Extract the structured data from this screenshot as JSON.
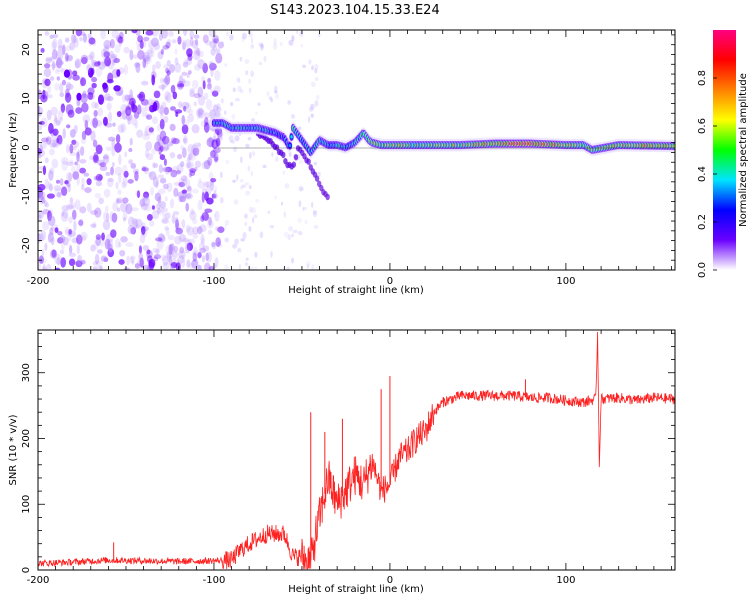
{
  "title": "S143.2023.104.15.33.E24",
  "chart_data": [
    {
      "type": "heatmap",
      "xlabel": "Height of straight line (km)",
      "ylabel": "Frequency (Hz)",
      "xlim": [
        -200,
        162
      ],
      "ylim": [
        -25,
        24
      ],
      "x_ticks": [
        -200,
        -100,
        0,
        100
      ],
      "y_ticks": [
        -20,
        -10,
        0,
        10,
        20
      ],
      "colorbar": {
        "label": "Normalized spectral amplitude",
        "range": [
          0,
          1
        ],
        "ticks": [
          0.0,
          0.2,
          0.4,
          0.6,
          0.8
        ],
        "tick_labels": [
          "0.0",
          "0.2",
          "0.4",
          "0.6",
          "0.8"
        ],
        "colors": [
          "#ffffff",
          "#6a00ff",
          "#0000ff",
          "#00e5ff",
          "#00ff00",
          "#ffff00",
          "#ff8000",
          "#ff0000",
          "#ff0080"
        ]
      },
      "noise_region": {
        "x_range": [
          -200,
          -100
        ],
        "f_range": [
          -25,
          24
        ],
        "typical_amplitude": 0.1
      },
      "signal_track": {
        "x": [
          -100,
          -95,
          -90,
          -85,
          -80,
          -75,
          -70,
          -65,
          -60,
          -57,
          -55,
          -50,
          -45,
          -40,
          -35,
          -30,
          -25,
          -20,
          -15,
          -12,
          -10,
          -5,
          0,
          10,
          20,
          40,
          60,
          80,
          100,
          110,
          115,
          130,
          162
        ],
        "frequency": [
          5,
          5,
          4,
          4,
          4,
          4,
          3.5,
          3,
          2,
          0,
          4,
          1.5,
          -1,
          1.5,
          0.5,
          0.5,
          0,
          1,
          3,
          1.5,
          1,
          0.5,
          0.5,
          0.5,
          0.5,
          0.5,
          0.8,
          0.8,
          0.5,
          0.5,
          -0.5,
          0.5,
          0.3
        ],
        "amplitude": [
          0.35,
          0.4,
          0.4,
          0.45,
          0.4,
          0.4,
          0.4,
          0.35,
          0.3,
          0.3,
          0.45,
          0.35,
          0.4,
          0.45,
          0.35,
          0.45,
          0.4,
          0.4,
          0.5,
          0.55,
          0.6,
          0.55,
          0.6,
          0.6,
          0.55,
          0.6,
          0.75,
          0.85,
          0.7,
          0.6,
          0.6,
          0.65,
          0.7
        ]
      },
      "branch_track": {
        "x": [
          -75,
          -70,
          -65,
          -60,
          -58,
          -55,
          -52,
          -48,
          -45,
          -42,
          -40,
          -38,
          -35
        ],
        "frequency": [
          3,
          2,
          0,
          -2,
          -3.5,
          -4,
          0,
          -2,
          -4,
          -6,
          -8,
          -9,
          -10
        ],
        "amplitude": [
          0.2,
          0.15,
          0.15,
          0.12,
          0.12,
          0.1,
          0.12,
          0.1,
          0.08,
          0.08,
          0.06,
          0.05,
          0.05
        ]
      }
    },
    {
      "type": "line",
      "xlabel": "Height of straight line (km)",
      "ylabel": "SNR (10 * v/v)",
      "xlim": [
        -200,
        162
      ],
      "ylim": [
        0,
        365
      ],
      "x_ticks": [
        -200,
        -100,
        0,
        100
      ],
      "y_ticks": [
        0,
        100,
        200,
        300
      ],
      "color": "#ff2020",
      "x": [
        -200,
        -180,
        -160,
        -140,
        -120,
        -100,
        -90,
        -85,
        -80,
        -70,
        -60,
        -55,
        -50,
        -45,
        -40,
        -35,
        -30,
        -25,
        -20,
        -15,
        -10,
        -5,
        0,
        5,
        10,
        15,
        20,
        25,
        30,
        40,
        50,
        60,
        70,
        80,
        90,
        100,
        110,
        117,
        118,
        119,
        120,
        130,
        140,
        150,
        162
      ],
      "values": [
        10,
        12,
        15,
        14,
        13,
        14,
        15,
        30,
        40,
        55,
        55,
        20,
        20,
        15,
        80,
        140,
        100,
        120,
        145,
        130,
        165,
        120,
        130,
        170,
        180,
        200,
        210,
        240,
        255,
        265,
        265,
        265,
        265,
        262,
        262,
        258,
        255,
        260,
        360,
        162,
        260,
        262,
        258,
        262,
        260
      ],
      "spikes": [
        {
          "x": -157,
          "value": 42
        },
        {
          "x": -45,
          "value": 240
        },
        {
          "x": -37,
          "value": 210
        },
        {
          "x": -27,
          "value": 230
        },
        {
          "x": -5,
          "value": 275
        },
        {
          "x": 0,
          "value": 295
        },
        {
          "x": 77,
          "value": 290
        },
        {
          "x": 118,
          "value": 360
        },
        {
          "x": 119,
          "value": 162
        }
      ]
    }
  ]
}
